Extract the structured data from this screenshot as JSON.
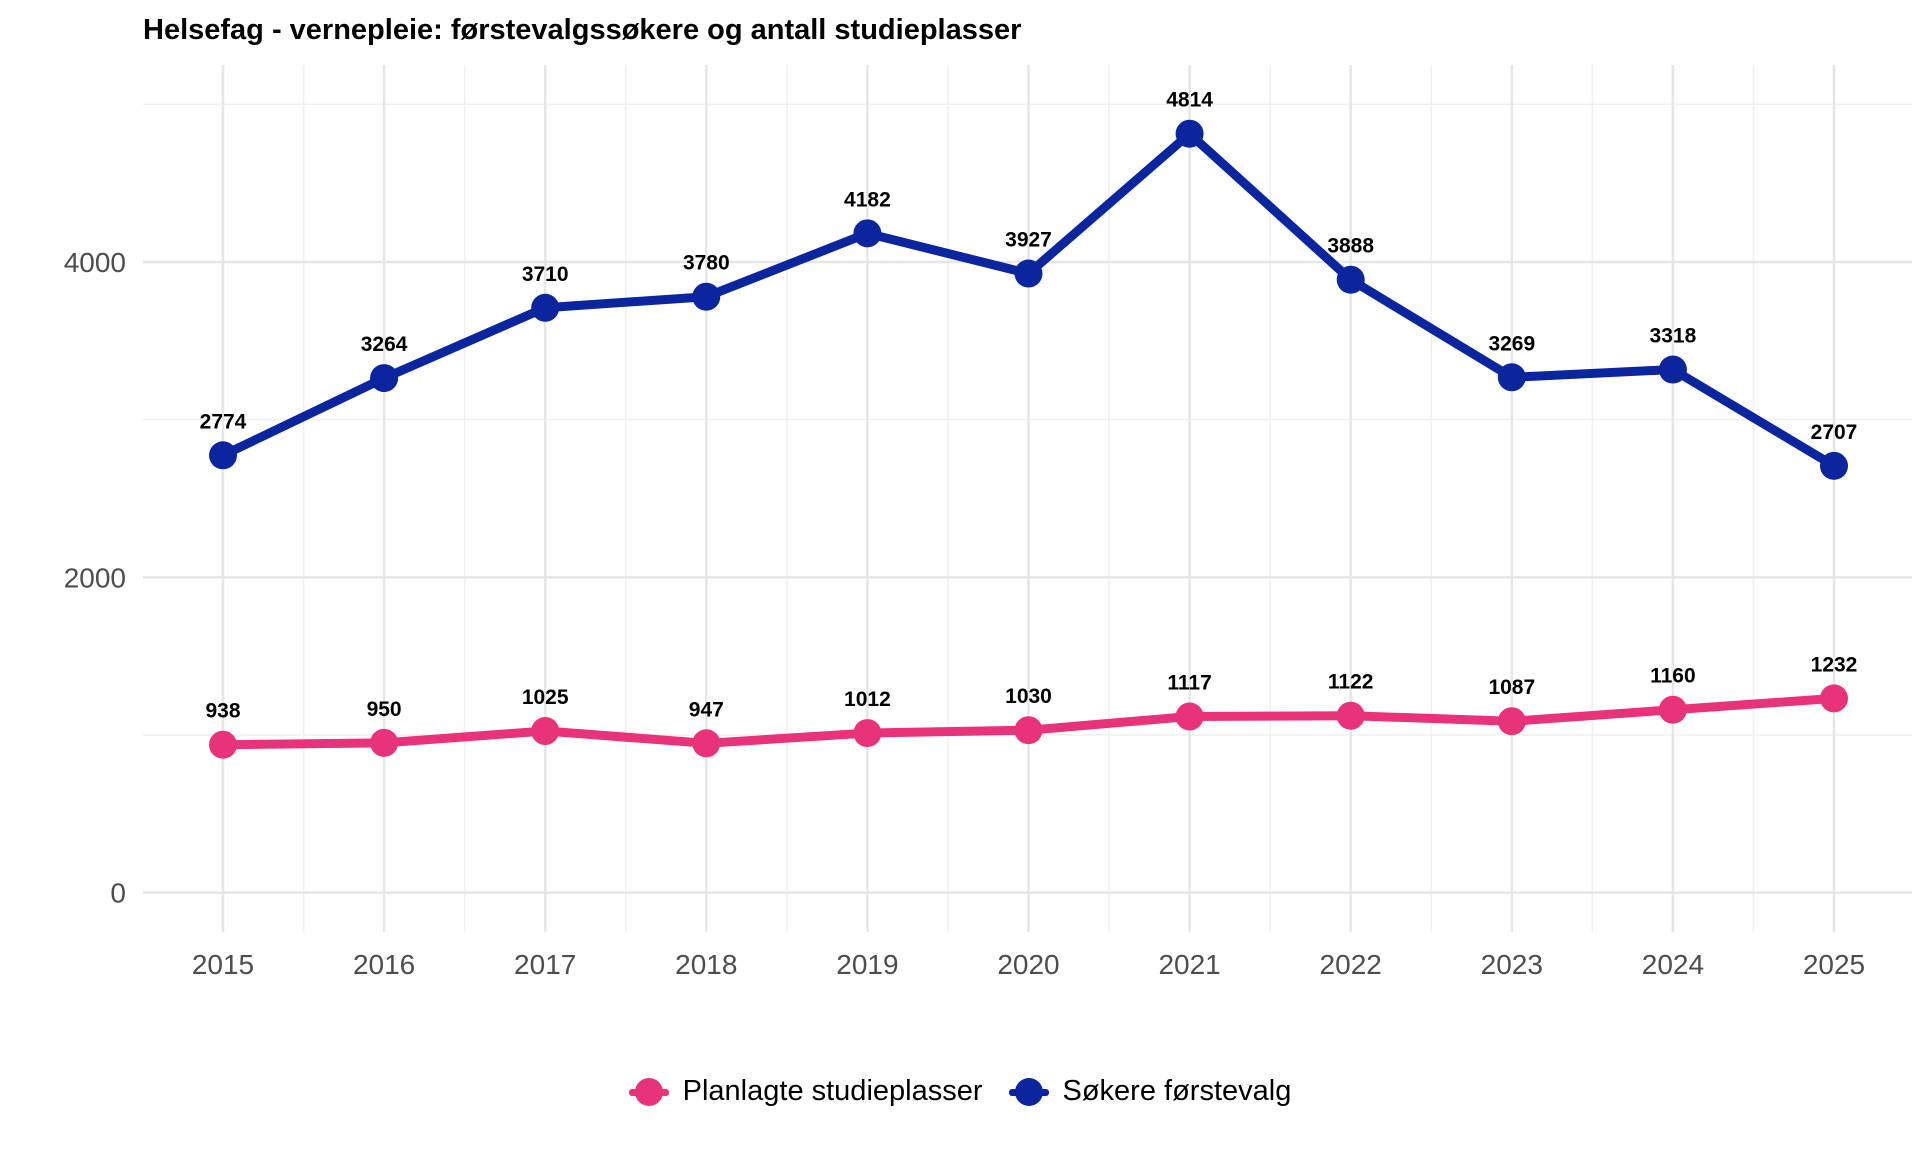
{
  "chart_data": {
    "type": "line",
    "title": "Helsefag - vernepleie: førstevalgssøkere og antall studieplasser",
    "xlabel": "",
    "ylabel": "",
    "categories": [
      "2015",
      "2016",
      "2017",
      "2018",
      "2019",
      "2020",
      "2021",
      "2022",
      "2023",
      "2024",
      "2025"
    ],
    "ylim": [
      -250,
      5250
    ],
    "yticks": [
      0,
      2000,
      4000
    ],
    "grid": true,
    "legend_position": "bottom",
    "series": [
      {
        "name": "Planlagte studieplasser",
        "color": "#e8327a",
        "values": [
          938,
          950,
          1025,
          947,
          1012,
          1030,
          1117,
          1122,
          1087,
          1160,
          1232
        ]
      },
      {
        "name": "Søkere førstevalg",
        "color": "#0a259e",
        "values": [
          2774,
          3264,
          3710,
          3780,
          4182,
          3927,
          4814,
          3888,
          3269,
          3318,
          2707
        ]
      }
    ]
  }
}
